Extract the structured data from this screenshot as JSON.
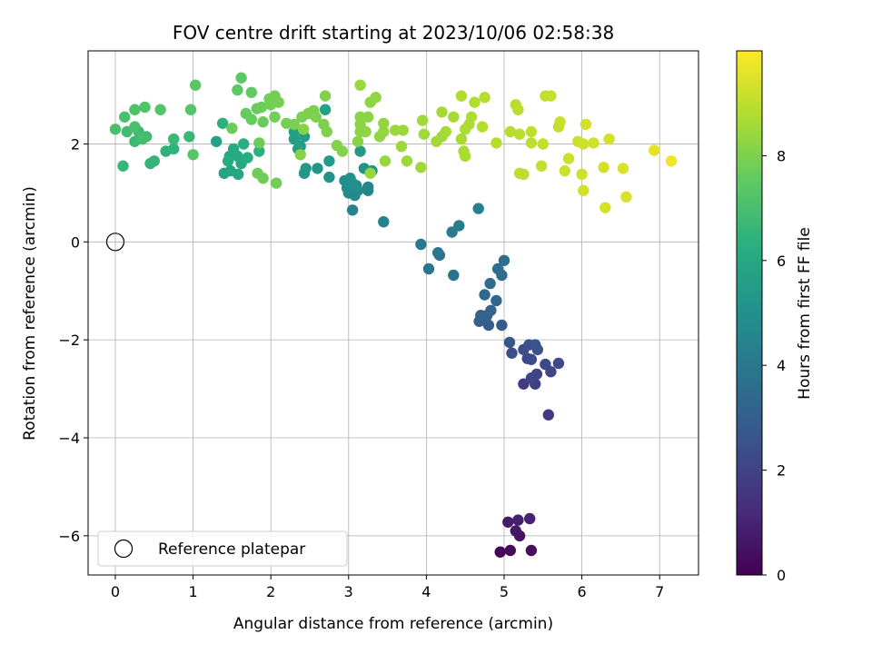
{
  "chart_data": {
    "type": "scatter",
    "title": "FOV centre drift starting at 2023/10/06 02:58:38",
    "xlabel": "Angular distance from reference (arcmin)",
    "ylabel": "Rotation from reference (arcmin)",
    "xlim": [
      -0.35,
      7.5
    ],
    "ylim": [
      -6.8,
      3.9
    ],
    "xticks": [
      0,
      1,
      2,
      3,
      4,
      5,
      6,
      7
    ],
    "yticks": [
      -6,
      -4,
      -2,
      0,
      2
    ],
    "grid": true,
    "legend": {
      "placement": "lower-left",
      "entries": [
        "Reference platepar"
      ]
    },
    "reference_point": {
      "label": "Reference platepar",
      "x": 0,
      "y": 0
    },
    "colorbar": {
      "label": "Hours from first FF file",
      "colormap": "viridis",
      "range": [
        0,
        10
      ],
      "ticks": [
        0,
        2,
        4,
        6,
        8
      ]
    },
    "points": [
      [
        4.95,
        -6.33,
        0.1
      ],
      [
        5.08,
        -6.3,
        0.25
      ],
      [
        5.35,
        -6.3,
        0.4
      ],
      [
        5.2,
        -6.0,
        0.55
      ],
      [
        5.15,
        -5.9,
        0.65
      ],
      [
        5.05,
        -5.72,
        0.75
      ],
      [
        5.18,
        -5.68,
        0.85
      ],
      [
        5.33,
        -5.65,
        0.95
      ],
      [
        5.57,
        -3.53,
        1.7
      ],
      [
        5.25,
        -2.9,
        1.8
      ],
      [
        5.4,
        -2.9,
        1.9
      ],
      [
        5.42,
        -2.7,
        2.0
      ],
      [
        5.6,
        -2.65,
        2.05
      ],
      [
        5.35,
        -2.78,
        2.1
      ],
      [
        5.53,
        -2.5,
        2.15
      ],
      [
        5.7,
        -2.48,
        2.2
      ],
      [
        5.35,
        -2.4,
        2.25
      ],
      [
        5.3,
        -2.38,
        2.3
      ],
      [
        5.25,
        -2.2,
        2.35
      ],
      [
        5.1,
        -2.27,
        2.4
      ],
      [
        5.43,
        -2.2,
        2.45
      ],
      [
        5.32,
        -2.1,
        2.5
      ],
      [
        5.4,
        -2.1,
        2.55
      ],
      [
        5.07,
        -2.05,
        2.65
      ],
      [
        4.97,
        -1.7,
        2.8
      ],
      [
        4.8,
        -1.7,
        2.9
      ],
      [
        4.68,
        -1.62,
        3.0
      ],
      [
        4.75,
        -1.6,
        3.05
      ],
      [
        4.78,
        -1.5,
        3.1
      ],
      [
        4.7,
        -1.5,
        3.15
      ],
      [
        4.83,
        -1.4,
        3.2
      ],
      [
        4.9,
        -1.2,
        3.3
      ],
      [
        4.75,
        -1.08,
        3.4
      ],
      [
        4.82,
        -0.85,
        3.5
      ],
      [
        4.97,
        -0.68,
        3.55
      ],
      [
        4.92,
        -0.55,
        3.6
      ],
      [
        5.0,
        -0.38,
        3.65
      ],
      [
        4.35,
        -0.68,
        3.75
      ],
      [
        4.03,
        -0.55,
        3.85
      ],
      [
        4.17,
        -0.27,
        3.9
      ],
      [
        4.15,
        -0.22,
        3.95
      ],
      [
        3.93,
        -0.05,
        4.05
      ],
      [
        4.33,
        0.2,
        4.1
      ],
      [
        4.42,
        0.33,
        4.2
      ],
      [
        4.67,
        0.68,
        4.3
      ],
      [
        3.45,
        0.41,
        4.4
      ],
      [
        3.05,
        0.65,
        4.45
      ],
      [
        3.25,
        1.05,
        4.55
      ],
      [
        3.25,
        1.12,
        4.6
      ],
      [
        3.08,
        0.95,
        4.65
      ],
      [
        3.0,
        1.0,
        4.7
      ],
      [
        3.12,
        1.05,
        4.75
      ],
      [
        2.98,
        1.1,
        4.8
      ],
      [
        3.05,
        1.2,
        4.85
      ],
      [
        2.95,
        1.25,
        4.9
      ],
      [
        3.1,
        1.15,
        4.95
      ],
      [
        3.02,
        1.3,
        5.0
      ],
      [
        3.3,
        1.45,
        5.05
      ],
      [
        3.2,
        1.5,
        5.1
      ],
      [
        2.75,
        1.32,
        5.15
      ],
      [
        2.6,
        1.5,
        5.2
      ],
      [
        2.43,
        1.4,
        5.25
      ],
      [
        2.45,
        1.5,
        5.3
      ],
      [
        2.75,
        1.65,
        5.35
      ],
      [
        3.15,
        1.85,
        5.4
      ],
      [
        2.38,
        1.95,
        5.45
      ],
      [
        2.43,
        2.15,
        5.5
      ],
      [
        2.3,
        2.1,
        5.55
      ],
      [
        2.3,
        2.25,
        5.6
      ],
      [
        2.35,
        1.9,
        5.65
      ],
      [
        2.7,
        2.7,
        5.7
      ],
      [
        1.3,
        2.05,
        5.75
      ],
      [
        1.4,
        1.4,
        5.8
      ],
      [
        1.48,
        1.45,
        5.85
      ],
      [
        1.58,
        1.38,
        5.9
      ],
      [
        1.47,
        1.75,
        5.95
      ],
      [
        1.62,
        1.6,
        6.0
      ],
      [
        1.57,
        1.75,
        6.05
      ],
      [
        1.45,
        1.65,
        6.1
      ],
      [
        1.52,
        1.9,
        6.15
      ],
      [
        1.7,
        1.72,
        6.2
      ],
      [
        1.65,
        2.0,
        6.25
      ],
      [
        1.85,
        1.85,
        6.3
      ],
      [
        1.38,
        2.42,
        6.35
      ],
      [
        0.65,
        1.85,
        6.4
      ],
      [
        0.75,
        1.9,
        6.45
      ],
      [
        0.45,
        1.6,
        6.5
      ],
      [
        0.5,
        1.65,
        6.55
      ],
      [
        0.1,
        1.55,
        6.6
      ],
      [
        0.95,
        2.15,
        6.65
      ],
      [
        0.75,
        2.1,
        6.7
      ],
      [
        0.25,
        2.05,
        6.75
      ],
      [
        0.3,
        2.25,
        6.8
      ],
      [
        0.4,
        2.15,
        6.85
      ],
      [
        0.15,
        2.25,
        6.9
      ],
      [
        0.35,
        2.1,
        6.95
      ],
      [
        0.0,
        2.3,
        7.0
      ],
      [
        0.25,
        2.35,
        7.05
      ],
      [
        0.12,
        2.55,
        7.1
      ],
      [
        0.25,
        2.7,
        7.15
      ],
      [
        0.38,
        2.75,
        7.2
      ],
      [
        0.58,
        2.7,
        7.25
      ],
      [
        0.97,
        2.7,
        7.3
      ],
      [
        1.0,
        1.78,
        7.35
      ],
      [
        1.03,
        3.2,
        7.4
      ],
      [
        1.62,
        3.35,
        7.45
      ],
      [
        1.57,
        3.1,
        7.5
      ],
      [
        1.75,
        3.05,
        7.55
      ],
      [
        1.68,
        2.62,
        7.6
      ],
      [
        1.75,
        2.5,
        7.62
      ],
      [
        1.9,
        2.45,
        7.64
      ],
      [
        1.82,
        2.72,
        7.66
      ],
      [
        1.88,
        2.75,
        7.68
      ],
      [
        1.5,
        2.32,
        7.7
      ],
      [
        1.85,
        2.02,
        7.72
      ],
      [
        1.83,
        1.4,
        7.74
      ],
      [
        1.9,
        1.3,
        7.76
      ],
      [
        2.07,
        1.2,
        7.78
      ],
      [
        2.05,
        2.55,
        7.8
      ],
      [
        1.98,
        2.92,
        7.82
      ],
      [
        2.0,
        2.8,
        7.84
      ],
      [
        2.05,
        2.98,
        7.86
      ],
      [
        2.1,
        2.85,
        7.88
      ],
      [
        2.2,
        2.42,
        7.9
      ],
      [
        2.3,
        2.4,
        7.92
      ],
      [
        2.4,
        2.55,
        7.94
      ],
      [
        2.48,
        2.62,
        7.96
      ],
      [
        2.55,
        2.68,
        7.98
      ],
      [
        2.58,
        2.55,
        8.0
      ],
      [
        2.68,
        2.4,
        8.02
      ],
      [
        2.72,
        2.25,
        8.04
      ],
      [
        2.7,
        2.98,
        8.06
      ],
      [
        2.85,
        1.97,
        8.08
      ],
      [
        2.92,
        1.85,
        8.1
      ],
      [
        2.42,
        2.3,
        8.12
      ],
      [
        2.38,
        1.78,
        8.14
      ],
      [
        3.12,
        2.05,
        8.16
      ],
      [
        3.15,
        2.4,
        8.18
      ],
      [
        3.15,
        2.55,
        8.2
      ],
      [
        3.25,
        2.55,
        8.22
      ],
      [
        3.15,
        2.25,
        8.24
      ],
      [
        3.22,
        2.25,
        8.26
      ],
      [
        3.28,
        2.85,
        8.28
      ],
      [
        3.35,
        2.95,
        8.3
      ],
      [
        3.4,
        2.15,
        8.32
      ],
      [
        3.45,
        2.25,
        8.34
      ],
      [
        3.45,
        2.42,
        8.36
      ],
      [
        3.47,
        1.65,
        8.38
      ],
      [
        3.28,
        1.4,
        8.4
      ],
      [
        3.15,
        3.2,
        8.42
      ],
      [
        3.6,
        2.28,
        8.44
      ],
      [
        3.7,
        2.28,
        8.46
      ],
      [
        3.68,
        1.95,
        8.48
      ],
      [
        3.75,
        1.65,
        8.5
      ],
      [
        3.93,
        1.52,
        8.52
      ],
      [
        3.95,
        2.48,
        8.54
      ],
      [
        3.97,
        2.2,
        8.56
      ],
      [
        4.13,
        2.05,
        8.58
      ],
      [
        4.2,
        2.15,
        8.6
      ],
      [
        4.2,
        2.65,
        8.62
      ],
      [
        4.25,
        2.25,
        8.64
      ],
      [
        4.35,
        2.55,
        8.66
      ],
      [
        4.45,
        2.1,
        8.68
      ],
      [
        4.48,
        1.85,
        8.7
      ],
      [
        4.5,
        1.75,
        8.72
      ],
      [
        4.5,
        2.3,
        8.74
      ],
      [
        4.55,
        2.4,
        8.76
      ],
      [
        4.58,
        2.55,
        8.78
      ],
      [
        4.45,
        2.98,
        8.8
      ],
      [
        4.62,
        2.85,
        8.82
      ],
      [
        4.75,
        2.95,
        8.84
      ],
      [
        4.72,
        2.35,
        8.86
      ],
      [
        4.9,
        2.02,
        8.88
      ],
      [
        5.08,
        2.25,
        8.9
      ],
      [
        5.15,
        2.8,
        8.92
      ],
      [
        5.18,
        2.7,
        8.94
      ],
      [
        5.2,
        2.2,
        8.96
      ],
      [
        5.2,
        1.4,
        8.98
      ],
      [
        5.25,
        1.38,
        9.0
      ],
      [
        5.35,
        2.02,
        9.02
      ],
      [
        5.35,
        2.25,
        9.04
      ],
      [
        5.48,
        1.55,
        9.06
      ],
      [
        5.5,
        2.0,
        9.08
      ],
      [
        5.53,
        2.98,
        9.1
      ],
      [
        5.6,
        2.98,
        9.12
      ],
      [
        5.7,
        2.35,
        9.14
      ],
      [
        5.72,
        2.45,
        9.16
      ],
      [
        5.78,
        1.45,
        9.18
      ],
      [
        5.83,
        1.7,
        9.2
      ],
      [
        5.95,
        2.05,
        9.22
      ],
      [
        6.02,
        2.0,
        9.24
      ],
      [
        6.0,
        1.38,
        9.26
      ],
      [
        6.02,
        1.05,
        9.28
      ],
      [
        6.05,
        2.4,
        9.3
      ],
      [
        6.15,
        2.02,
        9.32
      ],
      [
        6.28,
        1.52,
        9.34
      ],
      [
        6.3,
        0.7,
        9.36
      ],
      [
        6.35,
        2.1,
        9.38
      ],
      [
        6.53,
        1.5,
        9.4
      ],
      [
        6.57,
        0.92,
        9.42
      ],
      [
        6.93,
        1.87,
        9.6
      ],
      [
        7.15,
        1.65,
        9.8
      ]
    ]
  }
}
